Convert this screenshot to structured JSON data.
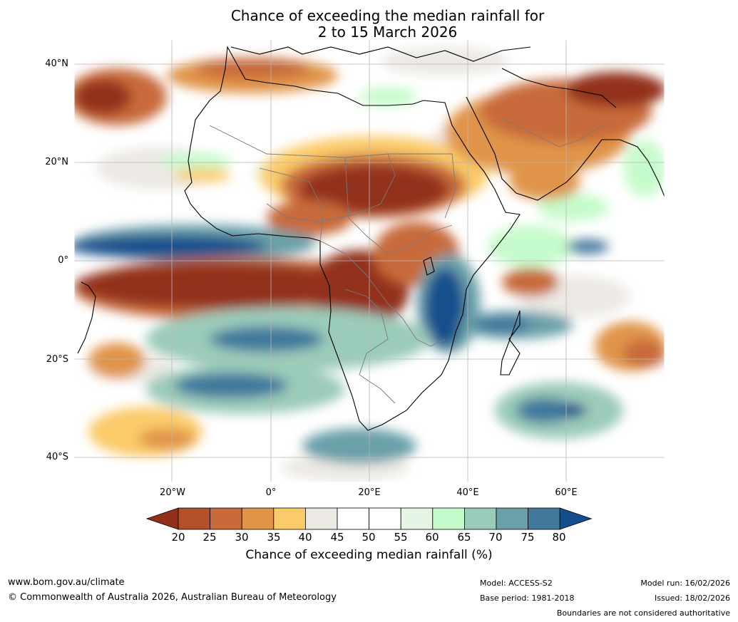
{
  "title": {
    "line1": "Chance of exceeding the median rainfall for",
    "line2": "2 to 15 March 2026"
  },
  "map": {
    "lat_labels": [
      "40°N",
      "20°N",
      "0°",
      "20°S",
      "40°S"
    ],
    "lon_labels": [
      "20°W",
      "0°",
      "20°E",
      "40°E",
      "60°E"
    ],
    "region": "Africa and Middle East",
    "lat_range": [
      -45,
      45
    ],
    "lon_range": [
      -40,
      80
    ]
  },
  "colorbar": {
    "ticks": [
      "20",
      "25",
      "30",
      "35",
      "40",
      "45",
      "50",
      "55",
      "60",
      "65",
      "70",
      "75",
      "80"
    ],
    "colors": [
      "#93301c",
      "#b3502a",
      "#c86a3a",
      "#e09448",
      "#fbcb6a",
      "#ece9e4",
      "#ffffff",
      "#ffffff",
      "#e6f5e6",
      "#c6fbcb",
      "#9bcbb9",
      "#6aa0a9",
      "#41789c",
      "#134f8c"
    ],
    "label": "Chance of exceeding median rainfall (%)"
  },
  "footer": {
    "website": "www.bom.gov.au/climate",
    "copyright": "© Commonwealth of Australia 2026, Australian Bureau of Meteorology",
    "model": "Model: ACCESS-S2",
    "base_period": "Base period: 1981-2018",
    "model_run": "Model run: 16/02/2026",
    "issued": "Issued: 18/02/2026",
    "disclaimer": "Boundaries are not considered authoritative"
  }
}
